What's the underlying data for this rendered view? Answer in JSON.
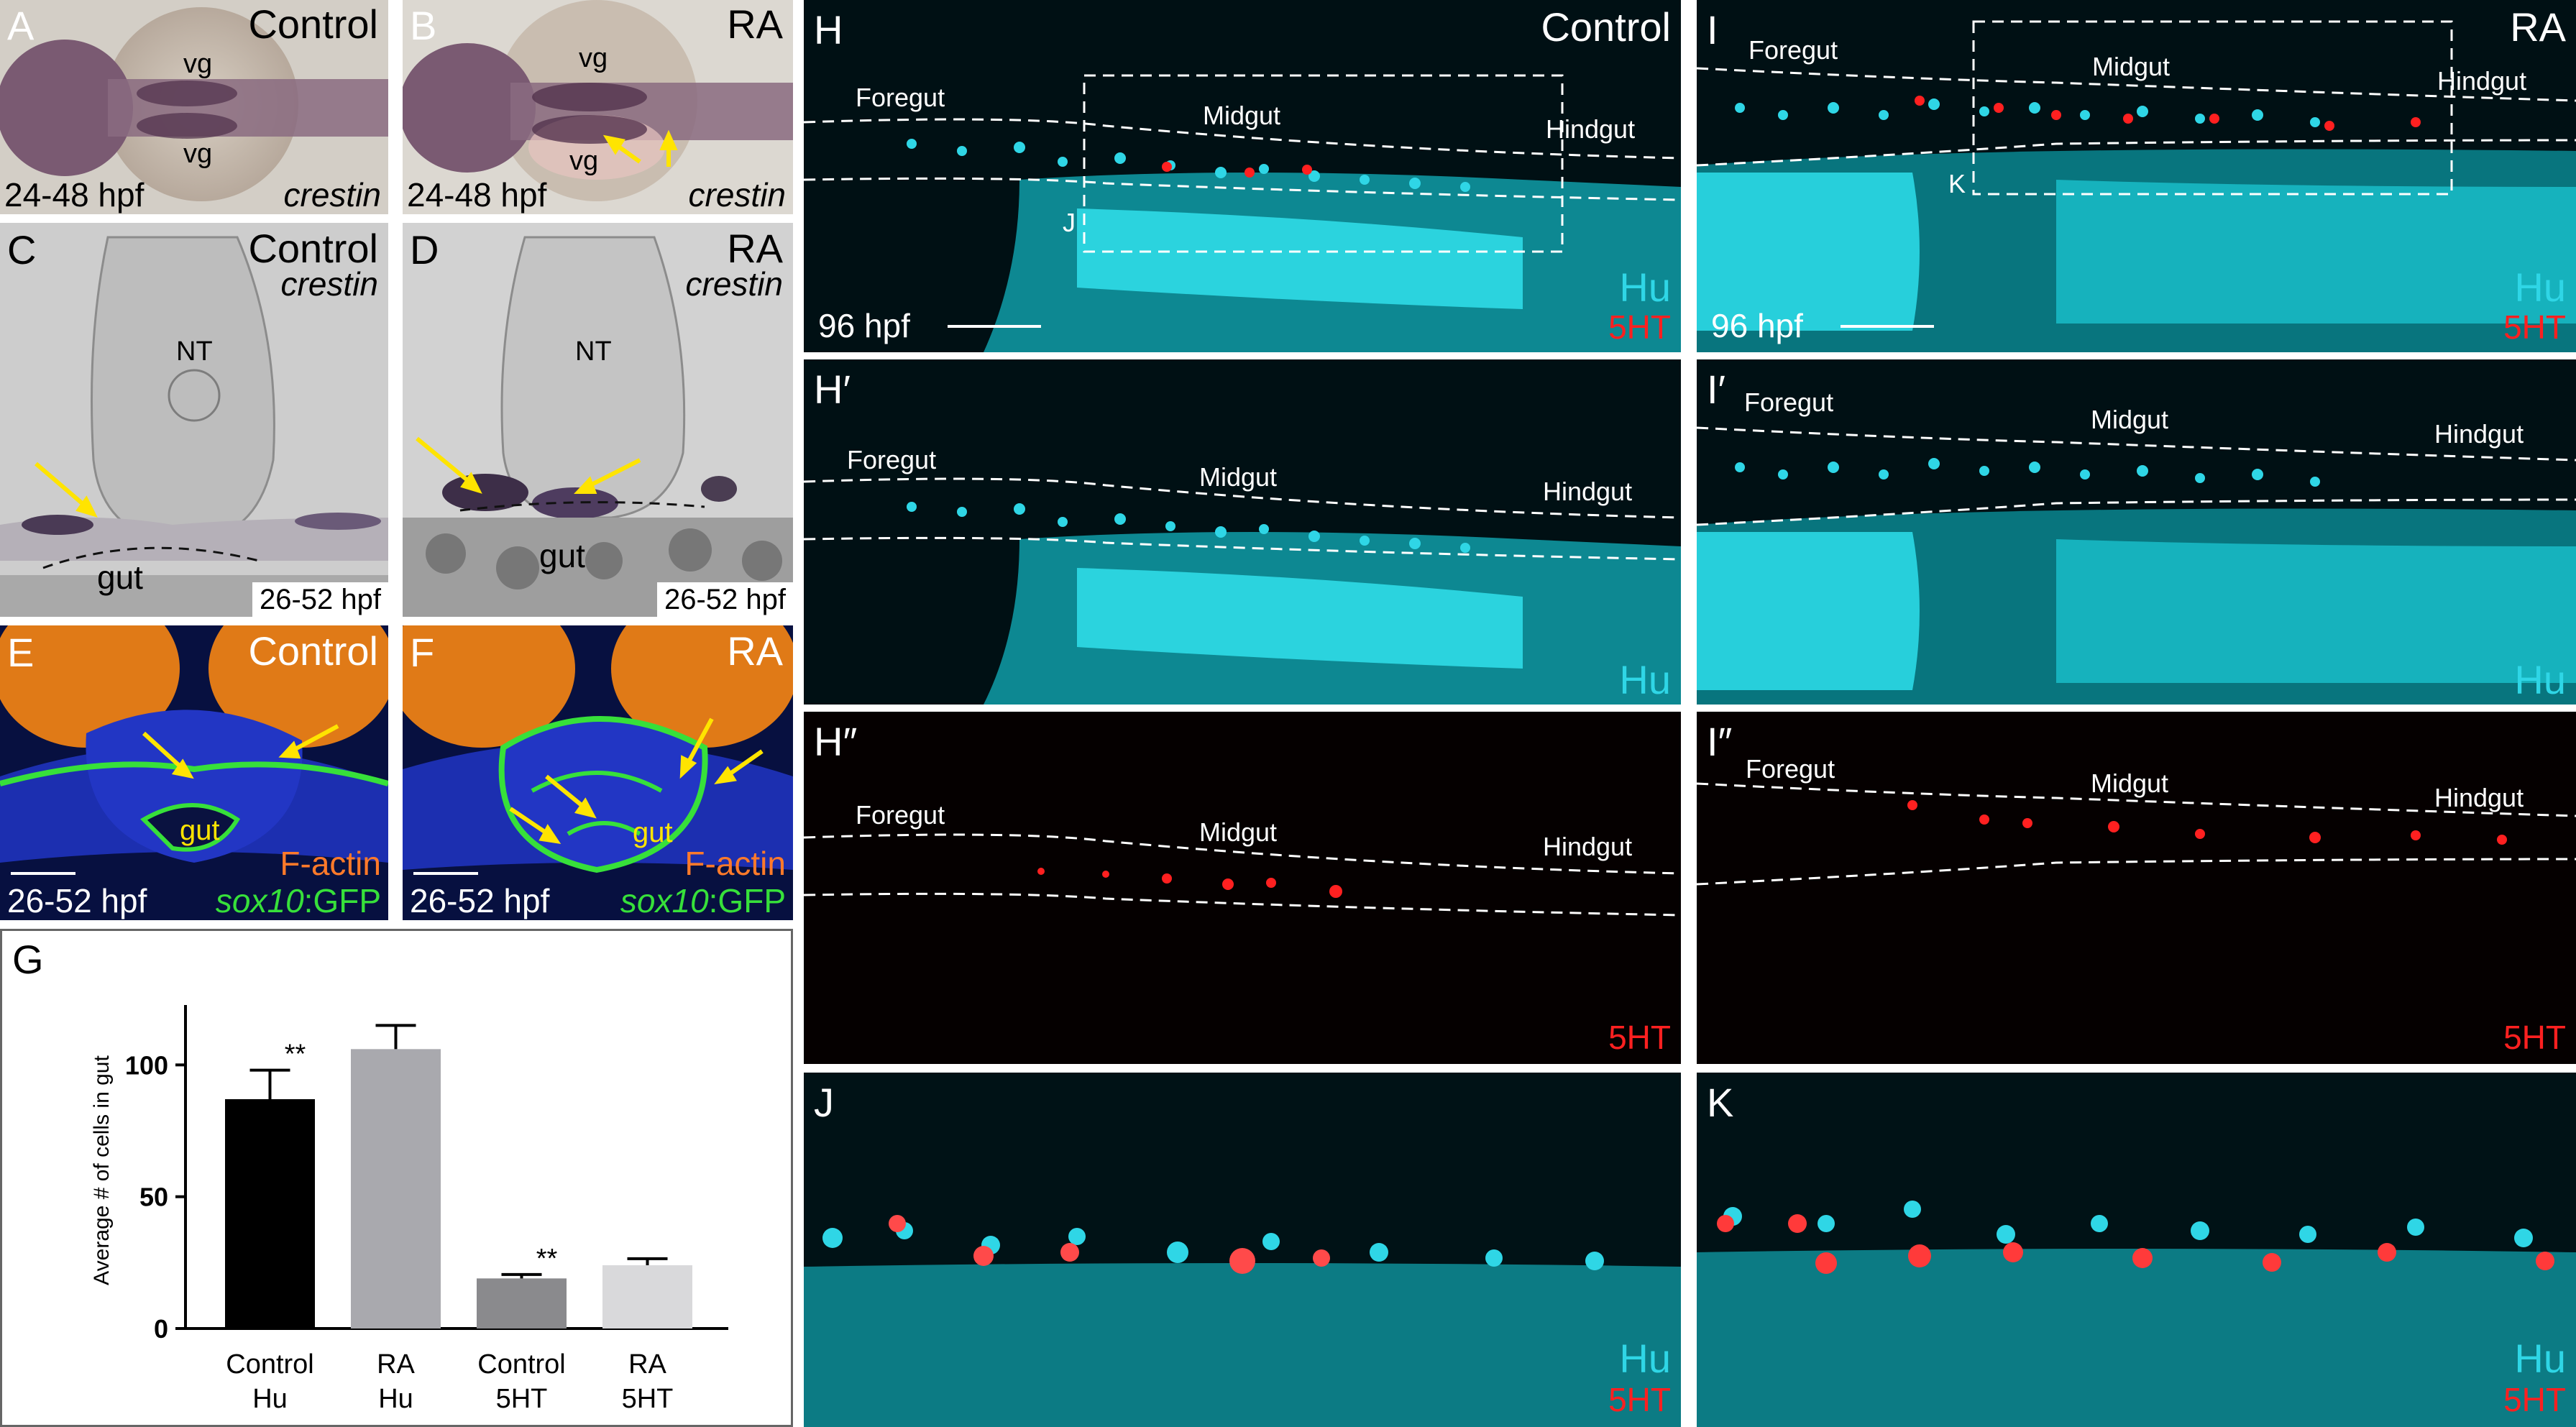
{
  "panels": {
    "A": {
      "letter": "A",
      "condition": "Control",
      "stage": "24-48 hpf",
      "probe": "crestin",
      "vg_top": "vg",
      "vg_bottom": "vg"
    },
    "B": {
      "letter": "B",
      "condition": "RA",
      "stage": "24-48 hpf",
      "probe": "crestin",
      "vg_top": "vg",
      "vg_bottom": "vg"
    },
    "C": {
      "letter": "C",
      "condition": "Control",
      "probe": "crestin",
      "nt": "NT",
      "gut": "gut",
      "stage": "26-52 hpf"
    },
    "D": {
      "letter": "D",
      "condition": "RA",
      "probe": "crestin",
      "nt": "NT",
      "gut": "gut",
      "stage": "26-52 hpf"
    },
    "E": {
      "letter": "E",
      "condition": "Control",
      "gut": "gut",
      "stain1": "F-actin",
      "stain2_gene": "sox10",
      "stain2_suffix": ":GFP",
      "stage": "26-52 hpf"
    },
    "F": {
      "letter": "F",
      "condition": "RA",
      "gut": "gut",
      "stain1": "F-actin",
      "stain2_gene": "sox10",
      "stain2_suffix": ":GFP",
      "stage": "26-52 hpf"
    },
    "H": {
      "letter": "H",
      "condition": "Control",
      "foregut": "Foregut",
      "midgut": "Midgut",
      "hindgut": "Hindgut",
      "stain1": "Hu",
      "stain2": "5HT",
      "stage": "96 hpf",
      "box_label": "J"
    },
    "I": {
      "letter": "I",
      "condition": "RA",
      "foregut": "Foregut",
      "midgut": "Midgut",
      "hindgut": "Hindgut",
      "stain1": "Hu",
      "stain2": "5HT",
      "stage": "96 hpf",
      "box_label": "K"
    },
    "H1": {
      "letter": "H′",
      "foregut": "Foregut",
      "midgut": "Midgut",
      "hindgut": "Hindgut",
      "stain": "Hu"
    },
    "I1": {
      "letter": "I′",
      "foregut": "Foregut",
      "midgut": "Midgut",
      "hindgut": "Hindgut",
      "stain": "Hu"
    },
    "H2": {
      "letter": "H″",
      "foregut": "Foregut",
      "midgut": "Midgut",
      "hindgut": "Hindgut",
      "stain": "5HT"
    },
    "I2": {
      "letter": "I″",
      "foregut": "Foregut",
      "midgut": "Midgut",
      "hindgut": "Hindgut",
      "stain": "5HT"
    },
    "J": {
      "letter": "J",
      "stain1": "Hu",
      "stain2": "5HT"
    },
    "K": {
      "letter": "K",
      "stain1": "Hu",
      "stain2": "5HT"
    },
    "G": {
      "letter": "G"
    }
  },
  "colors": {
    "hu": "#2fd6e6",
    "serotonin": "#ff2020",
    "factin": "#ff7a2a",
    "gfp": "#37e03a",
    "arrow": "#ffe400"
  },
  "chart_data": {
    "type": "bar",
    "categories": [
      "Control\nHu",
      "RA\nHu",
      "Control\n5HT",
      "RA\n5HT"
    ],
    "category_lines": [
      [
        "Control",
        "Hu"
      ],
      [
        "RA",
        "Hu"
      ],
      [
        "Control",
        "5HT"
      ],
      [
        "RA",
        "5HT"
      ]
    ],
    "values": [
      87,
      106,
      19,
      24
    ],
    "errors": [
      11,
      9,
      1.5,
      2.5
    ],
    "bar_colors": [
      "#000000",
      "#a9a9ae",
      "#8a8a8d",
      "#d9d9db"
    ],
    "ylabel": "Average # of cells in gut",
    "ylim": [
      0,
      120
    ],
    "yticks": [
      0,
      50,
      100
    ],
    "significance": [
      {
        "label": "**",
        "between": [
          0,
          1
        ]
      },
      {
        "label": "**",
        "between": [
          2,
          3
        ]
      }
    ],
    "grid": false
  }
}
